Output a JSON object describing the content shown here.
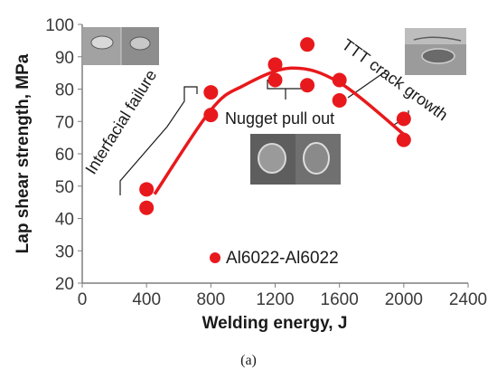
{
  "chart_data": {
    "type": "scatter",
    "xlabel": "Welding energy, J",
    "ylabel": "Lap shear strength, MPa",
    "xlim": [
      0,
      2400
    ],
    "ylim": [
      20,
      100
    ],
    "x_ticks": [
      "0",
      "400",
      "800",
      "1200",
      "1600",
      "2000",
      "2400"
    ],
    "y_ticks": [
      "20",
      "30",
      "40",
      "50",
      "60",
      "70",
      "80",
      "90",
      "100"
    ],
    "grid": false,
    "series": [
      {
        "name": "Al6022-Al6022",
        "color": "#e8191c",
        "points": [
          {
            "x": 400,
            "y": 49
          },
          {
            "x": 400,
            "y": 43.3
          },
          {
            "x": 800,
            "y": 79
          },
          {
            "x": 800,
            "y": 72
          },
          {
            "x": 1200,
            "y": 87.6
          },
          {
            "x": 1200,
            "y": 82.8
          },
          {
            "x": 1400,
            "y": 93.8
          },
          {
            "x": 1400,
            "y": 81.2
          },
          {
            "x": 1600,
            "y": 82.8
          },
          {
            "x": 1600,
            "y": 76.5
          },
          {
            "x": 2000,
            "y": 70.8
          },
          {
            "x": 2000,
            "y": 64.3
          }
        ]
      }
    ],
    "trendline": {
      "type": "polynomial",
      "color": "#e8191c",
      "x_range": [
        450,
        2000
      ],
      "points": [
        {
          "x": 450,
          "y": 47.5
        },
        {
          "x": 800,
          "y": 73.5
        },
        {
          "x": 1000,
          "y": 81
        },
        {
          "x": 1300,
          "y": 86.5
        },
        {
          "x": 1600,
          "y": 82
        },
        {
          "x": 2000,
          "y": 66
        }
      ]
    },
    "annotations": [
      {
        "text": "Interfacial failure",
        "region": "low energy"
      },
      {
        "text": "Nugget pull out",
        "region": "medium energy"
      },
      {
        "text": "TTT crack growth",
        "region": "high energy"
      }
    ],
    "legend_position": "bottom-center"
  },
  "caption": "(a)"
}
